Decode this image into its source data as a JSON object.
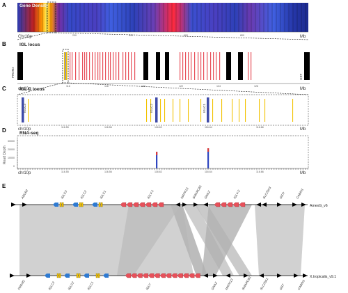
{
  "figure": {
    "panel_a": {
      "letter": "A",
      "title": "Gene Density",
      "chrom": "Chr10p",
      "unit": "Mb",
      "ticks": [
        "200",
        "400",
        "600",
        "800",
        "100"
      ]
    },
    "panel_b": {
      "letter": "B",
      "title": "IGL locus",
      "chrom": "chr10p",
      "unit": "Mb",
      "left_gene": "PRDM2",
      "right_gene": "GST",
      "ticks": [
        "116",
        "118",
        "120",
        "122",
        "124",
        "126"
      ]
    },
    "panel_c": {
      "letter": "C",
      "title": "IGL C locus",
      "chrom": "chr10p",
      "unit": "Mb",
      "gene_labels": [
        "IGLC3",
        "IGLC2",
        "IGLC1"
      ],
      "ticks": [
        "116.55",
        "116.56",
        "116.62",
        "116.64",
        "116.66"
      ]
    },
    "panel_d": {
      "letter": "D",
      "title": "RNA-seq",
      "chrom": "chr10p",
      "unit": "Mb",
      "ylabel": "Read Depth",
      "yticks": [
        "30000",
        "20000",
        "10000",
        "0"
      ],
      "ticks": [
        "116.55",
        "116.56",
        "116.62",
        "116.64",
        "116.66"
      ]
    },
    "panel_e": {
      "letter": "E",
      "top_track": "AmexG_v6",
      "bottom_track": "X.tropicalis_v9.1",
      "top_genes": [
        "ABCB2",
        "IGLC3",
        "IGLC2",
        "IGLC1",
        "IGLV-1",
        "MAPK13",
        "SMARCB1",
        "GNAZ",
        "IGLV-2",
        "SLC25A3",
        "GSTr",
        "CABIN1"
      ],
      "bottom_genes": [
        "PRDM2",
        "IGLC3",
        "IGLC2",
        "IGLC1",
        "IGLV",
        "GNAZ",
        "MAPK13",
        "SMARCB1",
        "SLC25A1",
        "GST",
        "CABIN1"
      ]
    },
    "colors": {
      "igl_v": "#e8505a",
      "igl_c": "#f2c200",
      "igl_j": "#2e7ad1",
      "flank": "#000000",
      "synteny": "#c9c9c9",
      "highlight": "#ffd700",
      "c_gene_bar": "#3f4ba8"
    }
  }
}
